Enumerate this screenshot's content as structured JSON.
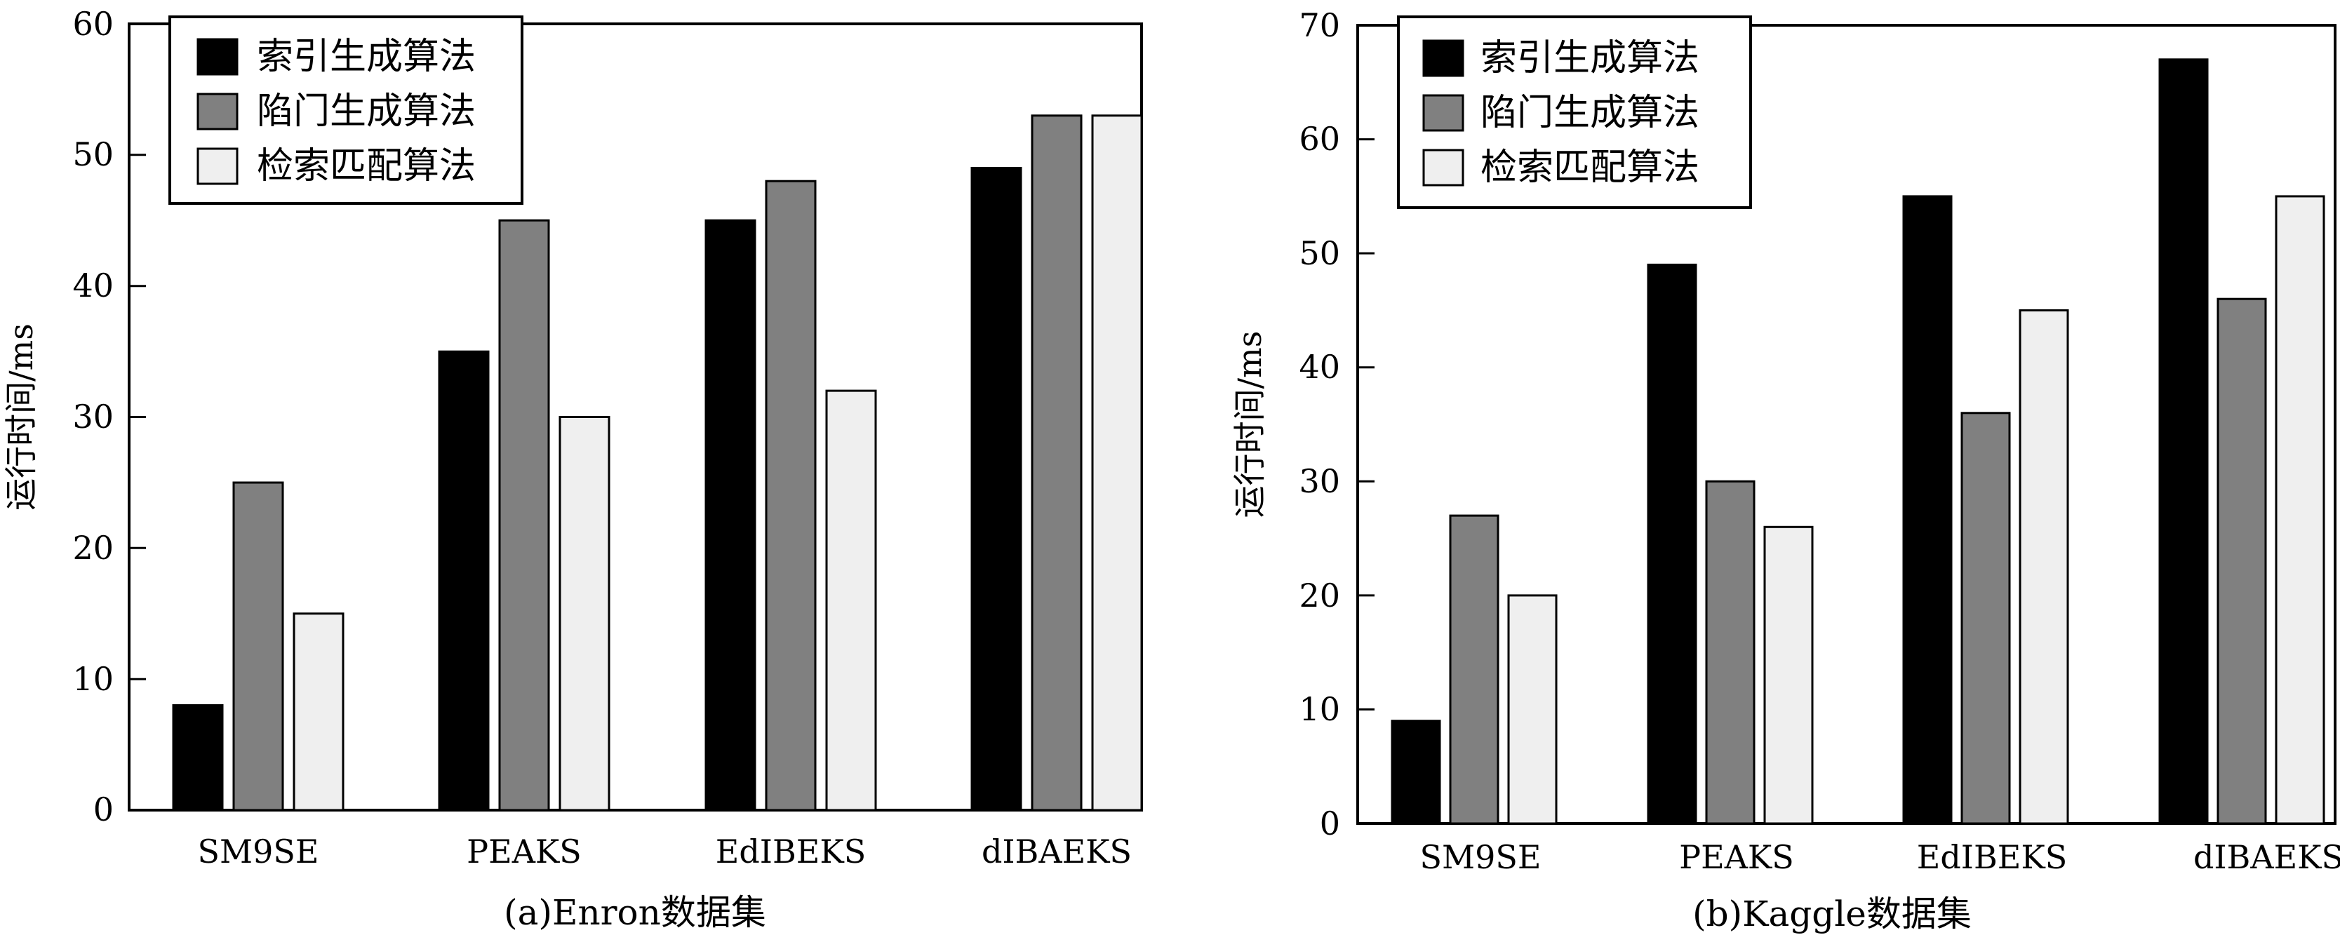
{
  "chart_data": [
    {
      "type": "bar",
      "caption": "(a)Enron数据集",
      "ylabel": "运行时间/ms",
      "xlabel": "",
      "ylim": [
        0,
        60
      ],
      "yticks": [
        0,
        10,
        20,
        30,
        40,
        50,
        60
      ],
      "categories": [
        "SM9SE",
        "PEAKS",
        "EdIBEKS",
        "dIBAEKS"
      ],
      "legend_position": "top-left",
      "series": [
        {
          "name": "索引生成算法",
          "color": "#000000",
          "values": [
            8,
            35,
            45,
            49
          ]
        },
        {
          "name": "陷门生成算法",
          "color": "#808080",
          "values": [
            25,
            45,
            48,
            53
          ]
        },
        {
          "name": "检索匹配算法",
          "color": "#efefef",
          "values": [
            15,
            30,
            32,
            53
          ]
        }
      ]
    },
    {
      "type": "bar",
      "caption": "(b)Kaggle数据集",
      "ylabel": "运行时间/ms",
      "xlabel": "",
      "ylim": [
        0,
        70
      ],
      "yticks": [
        0,
        10,
        20,
        30,
        40,
        50,
        60,
        70
      ],
      "categories": [
        "SM9SE",
        "PEAKS",
        "EdIBEKS",
        "dIBAEKS"
      ],
      "legend_position": "top-left",
      "series": [
        {
          "name": "索引生成算法",
          "color": "#000000",
          "values": [
            9,
            49,
            55,
            67
          ]
        },
        {
          "name": "陷门生成算法",
          "color": "#808080",
          "values": [
            27,
            30,
            36,
            46
          ]
        },
        {
          "name": "检索匹配算法",
          "color": "#efefef",
          "values": [
            20,
            26,
            45,
            55
          ]
        }
      ]
    }
  ]
}
